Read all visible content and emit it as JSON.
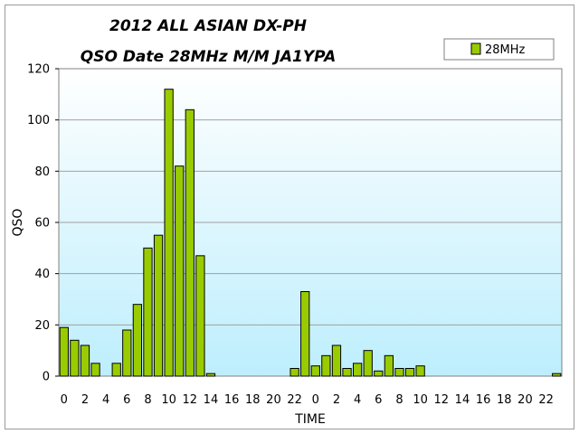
{
  "chart_data": {
    "type": "bar",
    "title_lines": [
      "2012 ALL ASIAN DX-PH",
      "QSO Date 28MHz M/M JA1YPA"
    ],
    "xlabel": "TIME",
    "ylabel": "QSO",
    "ylim": [
      0,
      120
    ],
    "yticks": [
      0,
      20,
      40,
      60,
      80,
      100,
      120
    ],
    "categories": [
      "0",
      "1",
      "2",
      "3",
      "4",
      "5",
      "6",
      "7",
      "8",
      "9",
      "10",
      "11",
      "12",
      "13",
      "14",
      "15",
      "16",
      "17",
      "18",
      "19",
      "20",
      "21",
      "22",
      "23",
      "0",
      "1",
      "2",
      "3",
      "4",
      "5",
      "6",
      "7",
      "8",
      "9",
      "10",
      "11",
      "12",
      "13",
      "14",
      "15",
      "16",
      "17",
      "18",
      "19",
      "20",
      "21",
      "22",
      "23"
    ],
    "x_tick_labels": [
      "0",
      "2",
      "4",
      "6",
      "8",
      "10",
      "12",
      "14",
      "16",
      "18",
      "20",
      "22",
      "0",
      "2",
      "4",
      "6",
      "8",
      "10",
      "12",
      "14",
      "16",
      "18",
      "20",
      "22"
    ],
    "series": [
      {
        "name": "28MHz",
        "values": [
          19,
          14,
          12,
          5,
          0,
          5,
          18,
          28,
          50,
          55,
          112,
          82,
          104,
          47,
          1,
          0,
          0,
          0,
          0,
          0,
          0,
          0,
          3,
          33,
          4,
          8,
          12,
          3,
          5,
          10,
          2,
          8,
          3,
          3,
          4,
          0,
          0,
          0,
          0,
          0,
          0,
          0,
          0,
          0,
          0,
          0,
          0,
          1
        ]
      }
    ],
    "grid": true,
    "legend": "top-right",
    "colors": {
      "bar_fill": "#99cc00",
      "bar_stroke": "#000000",
      "plot_bg_top": "#ffffff",
      "plot_bg_bottom": "#bdeefd",
      "gridline": "#a0a0a0"
    }
  }
}
